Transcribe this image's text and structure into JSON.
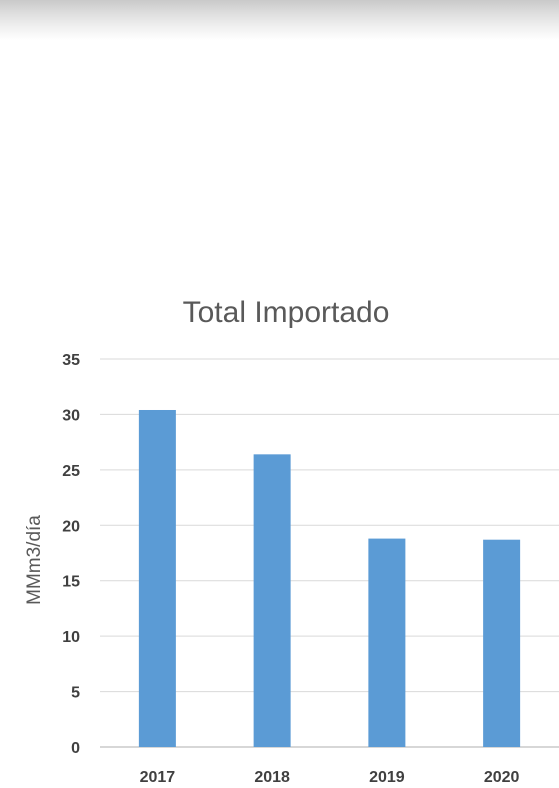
{
  "chart_data": {
    "type": "bar",
    "title": "Total Importado",
    "xlabel": "",
    "ylabel": "MMm3/día",
    "categories": [
      "2017",
      "2018",
      "2019",
      "2020"
    ],
    "values": [
      30.4,
      26.4,
      18.8,
      18.7
    ],
    "ylim": [
      0,
      35
    ],
    "yticks": [
      0,
      5,
      10,
      15,
      20,
      25,
      30,
      35
    ],
    "grid": true,
    "legend": "none",
    "bar_color": "#5b9bd5"
  }
}
